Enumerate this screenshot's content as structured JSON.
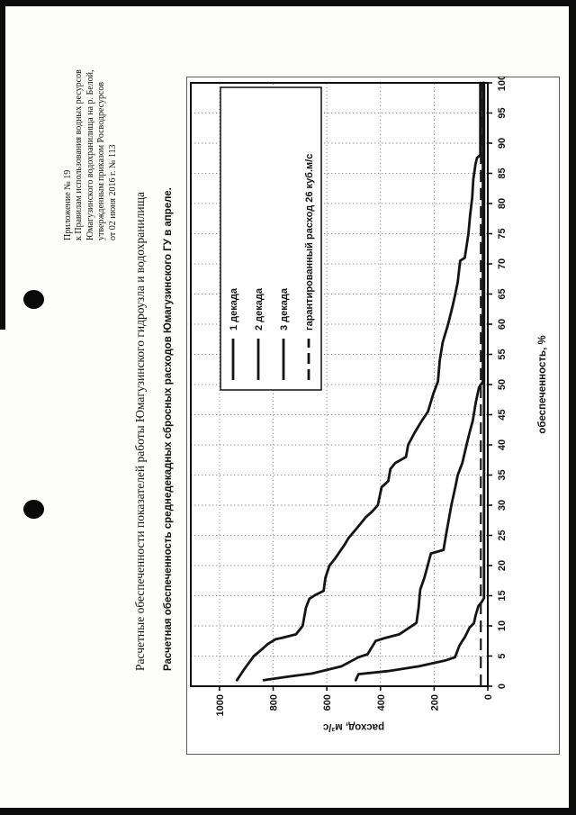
{
  "page": {
    "header_block": {
      "lines": [
        "Приложение № 19",
        "к Правилам использования водных ресурсов",
        "Юмагузинского водохранилища на р. Белой,",
        "утвержденным приказом Росводресурсов",
        "от 02 июня 2016 г. № 113"
      ]
    },
    "title": "Расчетные обеспеченности показателей работы Юмагузинского гидроузла и водохранилища",
    "subtitle": "Расчетная обеспеченность среднедекадных сбросных расходов Юмагузинского ГУ в апреле."
  },
  "chart_data": {
    "type": "line",
    "orientation": "rendered rotated 90° counter-clockwise on a portrait scanned page",
    "xlabel": "обеспеченность, %",
    "ylabel": "расход, м³/с",
    "xlim": [
      0,
      100
    ],
    "ylim": [
      0,
      1107
    ],
    "xticks": [
      0,
      5,
      10,
      15,
      20,
      25,
      30,
      35,
      40,
      45,
      50,
      55,
      60,
      65,
      70,
      75,
      80,
      85,
      90,
      95,
      100
    ],
    "yticks": [
      0,
      200,
      400,
      600,
      800,
      1000
    ],
    "grid": "dotted",
    "legend_position": "inside top-right",
    "line_color": "#141414",
    "series": [
      {
        "name": "1 декада",
        "style": "solid",
        "points": [
          [
            1,
            935
          ],
          [
            2,
            920
          ],
          [
            3,
            905
          ],
          [
            5,
            872
          ],
          [
            6,
            845
          ],
          [
            7,
            820
          ],
          [
            7.8,
            790
          ],
          [
            8,
            768
          ],
          [
            8.6,
            715
          ],
          [
            10,
            690
          ],
          [
            13,
            678
          ],
          [
            14.5,
            665
          ],
          [
            15.2,
            640
          ],
          [
            15.8,
            612
          ],
          [
            18,
            605
          ],
          [
            20,
            590
          ],
          [
            21,
            572
          ],
          [
            23.5,
            533
          ],
          [
            24.5,
            520
          ],
          [
            26.5,
            482
          ],
          [
            28,
            455
          ],
          [
            29,
            430
          ],
          [
            30,
            410
          ],
          [
            33,
            396
          ],
          [
            34,
            371
          ],
          [
            36,
            363
          ],
          [
            37,
            345
          ],
          [
            38,
            305
          ],
          [
            40,
            297
          ],
          [
            42,
            273
          ],
          [
            44,
            246
          ],
          [
            45.5,
            223
          ],
          [
            48.5,
            203
          ],
          [
            50.5,
            186
          ],
          [
            54,
            179
          ],
          [
            57,
            168
          ],
          [
            60,
            148
          ],
          [
            63,
            131
          ],
          [
            65,
            121
          ],
          [
            67,
            112
          ],
          [
            70.5,
            103
          ],
          [
            71,
            86
          ],
          [
            75,
            72
          ],
          [
            78,
            66
          ],
          [
            81,
            58
          ],
          [
            84,
            54
          ],
          [
            86.5,
            46
          ],
          [
            87.6,
            40
          ],
          [
            88,
            28
          ],
          [
            100,
            28
          ]
        ]
      },
      {
        "name": "2 декада",
        "style": "solid",
        "points": [
          [
            1,
            835
          ],
          [
            1.6,
            742
          ],
          [
            2.1,
            655
          ],
          [
            3.3,
            545
          ],
          [
            4.8,
            482
          ],
          [
            5.3,
            448
          ],
          [
            7.5,
            418
          ],
          [
            8,
            382
          ],
          [
            8.6,
            330
          ],
          [
            10.5,
            266
          ],
          [
            13,
            258
          ],
          [
            16,
            252
          ],
          [
            18,
            236
          ],
          [
            20,
            224
          ],
          [
            22,
            212
          ],
          [
            22.6,
            165
          ],
          [
            25,
            156
          ],
          [
            27,
            148
          ],
          [
            30,
            136
          ],
          [
            33,
            121
          ],
          [
            35,
            112
          ],
          [
            37,
            95
          ],
          [
            40,
            79
          ],
          [
            42,
            68
          ],
          [
            44,
            56
          ],
          [
            47,
            45
          ],
          [
            49.5,
            33
          ],
          [
            50.5,
            18
          ],
          [
            100,
            18
          ]
        ]
      },
      {
        "name": "3 декада",
        "style": "solid",
        "points": [
          [
            1,
            492
          ],
          [
            2,
            482
          ],
          [
            2.5,
            372
          ],
          [
            3.3,
            257
          ],
          [
            4.3,
            156
          ],
          [
            4.8,
            122
          ],
          [
            6.7,
            106
          ],
          [
            7.5,
            95
          ],
          [
            8.2,
            85
          ],
          [
            9.7,
            68
          ],
          [
            10.4,
            52
          ],
          [
            11.8,
            45
          ],
          [
            13.3,
            35
          ],
          [
            14,
            22
          ],
          [
            14.6,
            14
          ],
          [
            100,
            14
          ]
        ]
      }
    ],
    "guaranteed": {
      "label": "гарантированный расход 26 куб.м/с",
      "value": 26,
      "style": "dashed"
    }
  }
}
